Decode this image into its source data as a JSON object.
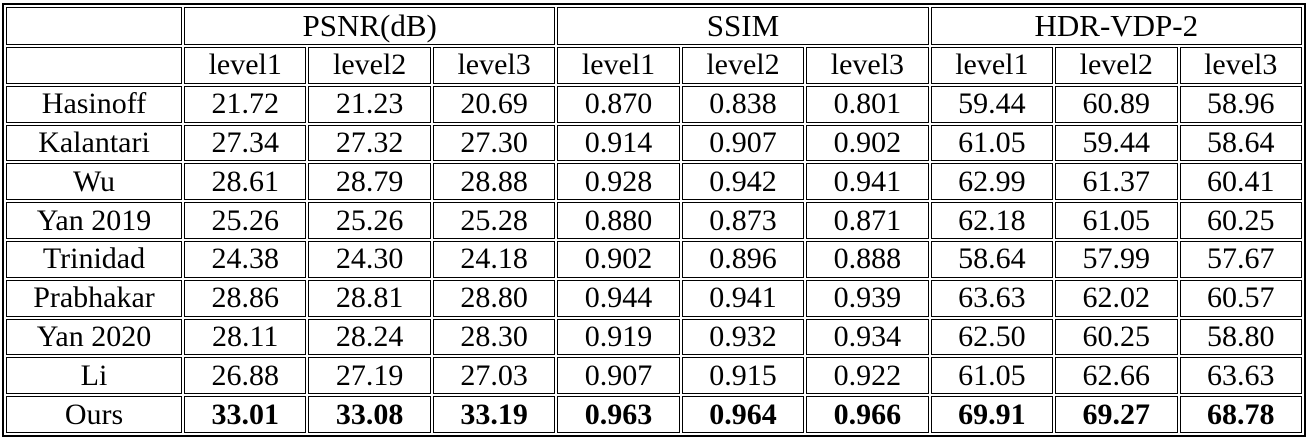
{
  "table": {
    "corner": "",
    "groups": [
      {
        "label": "PSNR(dB)"
      },
      {
        "label": "SSIM"
      },
      {
        "label": "HDR-VDP-2"
      }
    ],
    "levels": [
      "level1",
      "level2",
      "level3"
    ],
    "rows": [
      {
        "name": "Hasinoff",
        "values": [
          "21.72",
          "21.23",
          "20.69",
          "0.870",
          "0.838",
          "0.801",
          "59.44",
          "60.89",
          "58.96"
        ]
      },
      {
        "name": "Kalantari",
        "values": [
          "27.34",
          "27.32",
          "27.30",
          "0.914",
          "0.907",
          "0.902",
          "61.05",
          "59.44",
          "58.64"
        ]
      },
      {
        "name": "Wu",
        "values": [
          "28.61",
          "28.79",
          "28.88",
          "0.928",
          "0.942",
          "0.941",
          "62.99",
          "61.37",
          "60.41"
        ]
      },
      {
        "name": "Yan 2019",
        "values": [
          "25.26",
          "25.26",
          "25.28",
          "0.880",
          "0.873",
          "0.871",
          "62.18",
          "61.05",
          "60.25"
        ]
      },
      {
        "name": "Trinidad",
        "values": [
          "24.38",
          "24.30",
          "24.18",
          "0.902",
          "0.896",
          "0.888",
          "58.64",
          "57.99",
          "57.67"
        ]
      },
      {
        "name": "Prabhakar",
        "values": [
          "28.86",
          "28.81",
          "28.80",
          "0.944",
          "0.941",
          "0.939",
          "63.63",
          "62.02",
          "60.57"
        ]
      },
      {
        "name": "Yan 2020",
        "values": [
          "28.11",
          "28.24",
          "28.30",
          "0.919",
          "0.932",
          "0.934",
          "62.50",
          "60.25",
          "58.80"
        ]
      },
      {
        "name": "Li",
        "values": [
          "26.88",
          "27.19",
          "27.03",
          "0.907",
          "0.915",
          "0.922",
          "61.05",
          "62.66",
          "63.63"
        ]
      },
      {
        "name": "Ours",
        "values": [
          "33.01",
          "33.08",
          "33.19",
          "0.963",
          "0.964",
          "0.966",
          "69.91",
          "69.27",
          "68.78"
        ],
        "bold": true
      }
    ],
    "colors": {
      "text": "#000000",
      "border": "#000000",
      "background": "#ffffff"
    }
  }
}
